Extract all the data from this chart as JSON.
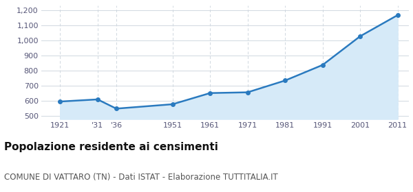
{
  "years": [
    1921,
    1931,
    1936,
    1951,
    1961,
    1971,
    1981,
    1991,
    2001,
    2011
  ],
  "population": [
    596,
    610,
    549,
    578,
    652,
    657,
    735,
    838,
    1028,
    1168
  ],
  "x_tick_labels": [
    "1921",
    "'31",
    "'36",
    "1951",
    "1961",
    "1971",
    "1981",
    "1991",
    "2001",
    "2011"
  ],
  "ylim_bottom": 480,
  "ylim_top": 1230,
  "yticks": [
    500,
    600,
    700,
    800,
    900,
    1000,
    1100,
    1200
  ],
  "ytick_labels": [
    "500",
    "600",
    "700",
    "800",
    "900",
    "1,000",
    "1,100",
    "1,200"
  ],
  "xlim_left": 1916,
  "xlim_right": 2014,
  "line_color": "#2a7abf",
  "fill_color": "#d6eaf8",
  "marker_color": "#2a7abf",
  "grid_color": "#d0d8e0",
  "bg_color": "#ffffff",
  "title": "Popolazione residente ai censimenti",
  "subtitle": "COMUNE DI VATTARO (TN) - Dati ISTAT - Elaborazione TUTTITALIA.IT",
  "title_fontsize": 11,
  "subtitle_fontsize": 8.5,
  "tick_fontsize": 8,
  "tick_color": "#555577"
}
